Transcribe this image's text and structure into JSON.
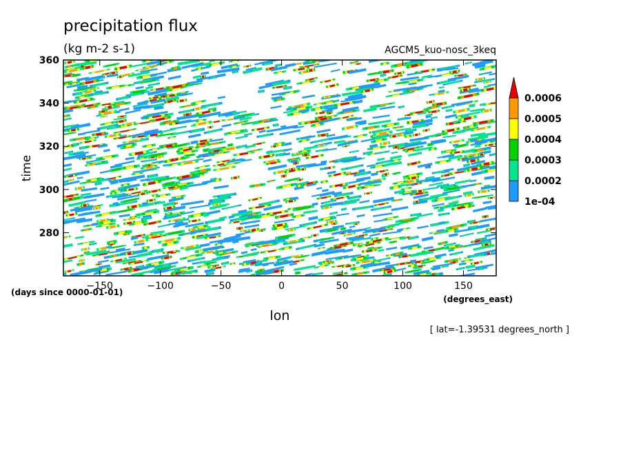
{
  "chart_data": {
    "type": "heatmap",
    "title": "precipitation flux",
    "subtitle": "(kg m-2 s-1)",
    "dataset_label": "AGCM5_kuo-nosc_3keq",
    "xlabel": "lon",
    "xunits": "(degrees_east)",
    "ylabel": "time",
    "yunits": "(days since 0000-01-01)",
    "annotation": "[ lat=-1.39531 degrees_north ]",
    "xlim": [
      -180,
      177
    ],
    "ylim": [
      260,
      360
    ],
    "x_ticks": [
      -150,
      -100,
      -50,
      0,
      50,
      100,
      150
    ],
    "x_tick_labels": [
      "−150",
      "−100",
      "−50",
      "0",
      "50",
      "100",
      "150"
    ],
    "y_ticks": [
      280,
      300,
      320,
      340,
      360
    ],
    "y_tick_labels": [
      "280",
      "300",
      "320",
      "340",
      "360"
    ],
    "grid": false,
    "legend_position": "right",
    "colorbar": {
      "levels": [
        0.0001,
        0.0002,
        0.0003,
        0.0004,
        0.0005,
        0.0006
      ],
      "labels": [
        "1e-04",
        "0.0002",
        "0.0003",
        "0.0004",
        "0.0005",
        "0.0006"
      ],
      "colors": [
        "#1e9bff",
        "#00e68c",
        "#00d200",
        "#ffff00",
        "#ff9900",
        "#e60000"
      ]
    }
  }
}
